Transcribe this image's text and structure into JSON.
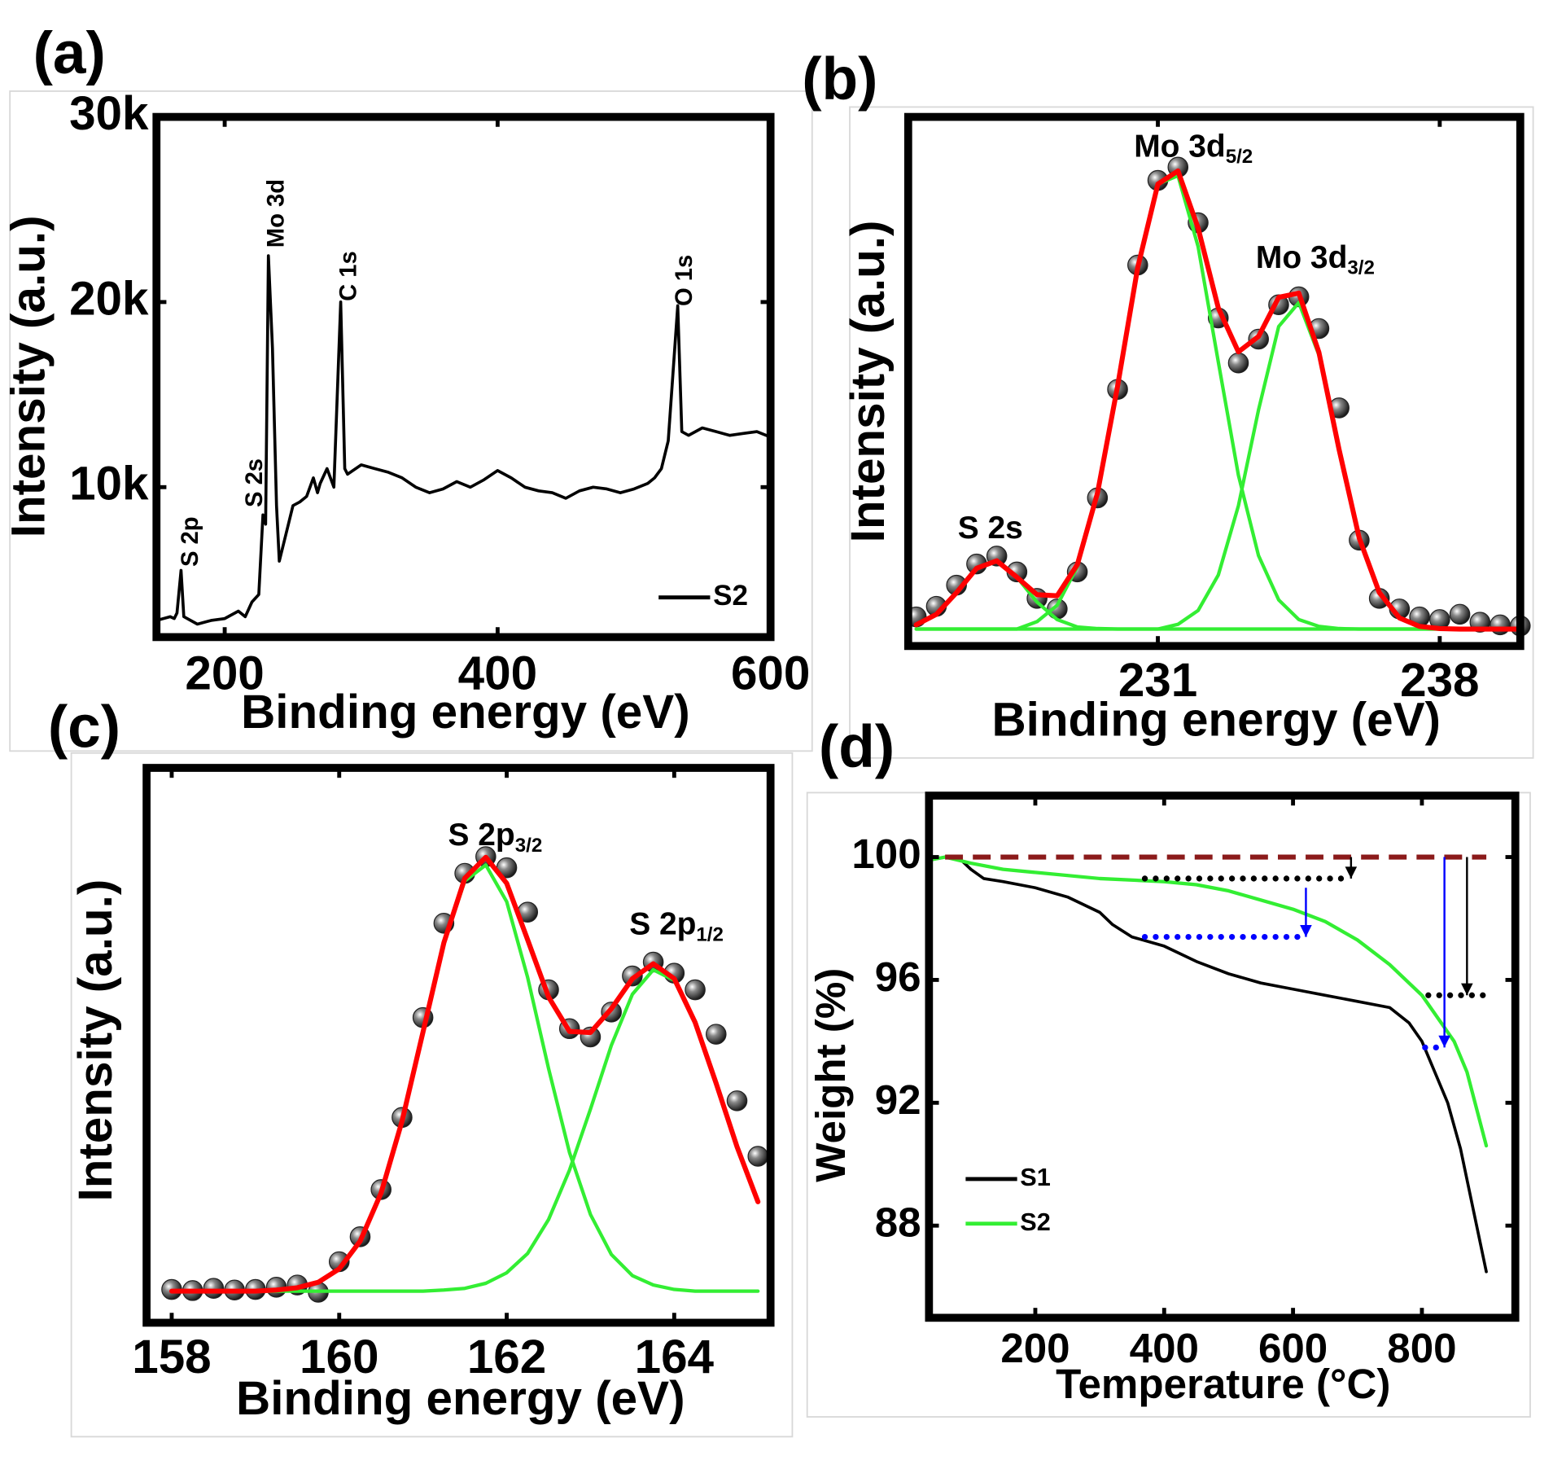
{
  "chart_data": [
    {
      "type": "line",
      "panel_label": "(a)",
      "x_label": "Binding energy (eV)",
      "y_label": "Intensity (a.u.)",
      "xlim": [
        150,
        600
      ],
      "xticks": [
        200,
        400,
        600
      ],
      "ylim": [
        1900,
        30000
      ],
      "yticks": [
        {
          "value": 10000,
          "label": "10k"
        },
        {
          "value": 20000,
          "label": "20k"
        },
        {
          "value": 30000,
          "label": "30k"
        }
      ],
      "legend": "lower right",
      "series": [
        {
          "name": "S2",
          "color": "#000000",
          "style": "line",
          "x": [
            150,
            160,
            163,
            165,
            168,
            170,
            180,
            190,
            200,
            210,
            215,
            220,
            225,
            228,
            230,
            232,
            235,
            238,
            240,
            245,
            250,
            255,
            260,
            265,
            268,
            270,
            275,
            280,
            285,
            288,
            290,
            300,
            310,
            320,
            330,
            340,
            350,
            360,
            370,
            380,
            390,
            400,
            410,
            420,
            430,
            440,
            450,
            460,
            470,
            480,
            490,
            500,
            510,
            515,
            520,
            525,
            532,
            535,
            540,
            550,
            560,
            570,
            580,
            590,
            600
          ],
          "values": [
            2800,
            3000,
            2900,
            3200,
            5500,
            3000,
            2600,
            2800,
            2900,
            3300,
            3000,
            3800,
            4200,
            8500,
            8000,
            22500,
            17500,
            9000,
            6000,
            7500,
            9000,
            9200,
            9500,
            10500,
            9700,
            10200,
            11000,
            10000,
            20000,
            11000,
            10700,
            11200,
            11000,
            10800,
            10500,
            10000,
            9700,
            9900,
            10300,
            10000,
            10400,
            10900,
            10500,
            10000,
            9800,
            9700,
            9400,
            9800,
            10000,
            9900,
            9700,
            9900,
            10200,
            10500,
            11000,
            12500,
            19800,
            13000,
            12800,
            13200,
            13000,
            12800,
            12900,
            13000,
            12700
          ]
        }
      ],
      "annotations": [
        {
          "text": "S 2p"
        },
        {
          "text": "S 2s"
        },
        {
          "text": "Mo 3d"
        },
        {
          "text": "C 1s"
        },
        {
          "text": "O 1s"
        }
      ]
    },
    {
      "type": "line",
      "panel_label": "(b)",
      "x_label": "Binding energy (eV)",
      "y_label": "Intensity (a.u.)",
      "xlim": [
        224.8,
        240
      ],
      "xticks": [
        231,
        238
      ],
      "ylim": [
        0,
        100
      ],
      "series": [
        {
          "color": "#222222",
          "style": "scatter",
          "x": [
            225,
            225.5,
            226,
            226.5,
            227,
            227.5,
            228,
            228.5,
            229,
            229.5,
            230,
            230.5,
            231,
            231.5,
            232,
            232.5,
            233,
            233.5,
            234,
            234.5,
            235,
            235.5,
            236,
            236.5,
            237,
            237.5,
            238,
            238.5,
            239,
            239.5,
            240
          ],
          "values": [
            5.5,
            7.5,
            11.5,
            15.5,
            17.0,
            14.0,
            9.0,
            7.0,
            14.0,
            28.0,
            48.5,
            72.0,
            88.0,
            90.5,
            80.0,
            62.0,
            53.5,
            58.0,
            64.5,
            66.0,
            60.0,
            45.0,
            20.0,
            9.0,
            7.0,
            5.5,
            5.0,
            6.0,
            4.5,
            4.0,
            3.8
          ]
        },
        {
          "color": "#33ee33",
          "style": "line",
          "x": [
            225,
            225.5,
            226,
            226.5,
            227,
            227.5,
            228,
            228.5,
            229,
            229.5,
            230,
            230.5,
            231,
            231.5,
            232,
            232.5,
            233,
            233.5,
            234,
            234.5,
            235,
            235.5,
            236,
            236.5,
            237,
            237.5,
            238,
            238.5,
            239,
            239.5,
            240
          ],
          "values": [
            4.0,
            6.0,
            10.1,
            14.7,
            16.1,
            13.0,
            8.3,
            5.0,
            3.6,
            3.3,
            3.2,
            3.2,
            3.2,
            3.2,
            3.2,
            3.2,
            3.2,
            3.2,
            3.2,
            3.2,
            3.2,
            3.2,
            3.2,
            3.2,
            3.2,
            3.2,
            3.2,
            3.2,
            3.2,
            3.2,
            3.2
          ]
        },
        {
          "color": "#33ee33",
          "style": "line",
          "x": [
            225,
            225.5,
            226,
            226.5,
            227,
            227.5,
            228,
            228.5,
            229,
            229.5,
            230,
            230.5,
            231,
            231.5,
            232,
            232.5,
            233,
            233.5,
            234,
            234.5,
            235,
            235.5,
            236,
            236.5,
            237,
            237.5,
            238,
            238.5,
            239,
            239.5,
            240
          ],
          "values": [
            3.2,
            3.2,
            3.2,
            3.2,
            3.2,
            3.2,
            4.6,
            7.7,
            15.0,
            28.8,
            49.1,
            71.5,
            87.3,
            88.9,
            75.5,
            53.7,
            32.3,
            17.1,
            8.7,
            5.0,
            3.7,
            3.3,
            3.2,
            3.2,
            3.2,
            3.2,
            3.2,
            3.2,
            3.2,
            3.2,
            3.2
          ]
        },
        {
          "color": "#33ee33",
          "style": "line",
          "x": [
            225,
            225.5,
            226,
            226.5,
            227,
            227.5,
            228,
            228.5,
            229,
            229.5,
            230,
            230.5,
            231,
            231.5,
            232,
            232.5,
            233,
            233.5,
            234,
            234.5,
            235,
            235.5,
            236,
            236.5,
            237,
            237.5,
            238,
            238.5,
            239,
            239.5,
            240
          ],
          "values": [
            3.2,
            3.2,
            3.2,
            3.2,
            3.2,
            3.2,
            3.2,
            3.2,
            3.2,
            3.2,
            3.2,
            3.2,
            3.2,
            4.1,
            6.7,
            13.4,
            26.5,
            44.6,
            60.4,
            64.9,
            55.0,
            37.1,
            20.4,
            10.1,
            5.3,
            3.7,
            3.3,
            3.2,
            3.2,
            3.2,
            3.2
          ]
        },
        {
          "color": "#ff0000",
          "style": "bold-line",
          "x": [
            225,
            225.5,
            226,
            226.5,
            227,
            227.5,
            228,
            228.5,
            229,
            229.5,
            230,
            230.5,
            231,
            231.5,
            232,
            232.5,
            233,
            233.5,
            234,
            234.5,
            235,
            235.5,
            236,
            236.5,
            237,
            237.5,
            238,
            238.5,
            239,
            239.5,
            240
          ],
          "values": [
            4.0,
            6.0,
            10.1,
            14.7,
            16.1,
            13.0,
            9.7,
            9.5,
            15.4,
            28.9,
            49.1,
            71.5,
            87.3,
            89.8,
            79.0,
            63.9,
            55.6,
            58.5,
            65.9,
            66.7,
            55.5,
            37.2,
            20.4,
            10.1,
            5.3,
            3.7,
            3.3,
            3.2,
            3.2,
            3.2,
            3.2
          ]
        }
      ],
      "annotations": [
        {
          "text": "S 2s"
        },
        {
          "text": "Mo 3d",
          "sub": "5/2"
        },
        {
          "text": "Mo 3d",
          "sub": "3/2"
        }
      ]
    },
    {
      "type": "line",
      "panel_label": "(c)",
      "x_label": "Binding energy (eV)",
      "y_label": "Intensity (a.u.)",
      "xlim": [
        157.7,
        165.15
      ],
      "xticks": [
        158,
        160,
        162,
        164
      ],
      "ylim": [
        0,
        100
      ],
      "series": [
        {
          "color": "#222222",
          "style": "scatter",
          "x": [
            158,
            158.25,
            158.5,
            158.75,
            159,
            159.25,
            159.5,
            159.75,
            160,
            160.25,
            160.5,
            160.75,
            161,
            161.25,
            161.5,
            161.75,
            162,
            162.25,
            162.5,
            162.75,
            163,
            163.25,
            163.5,
            163.75,
            164,
            164.25,
            164.5,
            164.75,
            165
          ],
          "values": [
            6.0,
            5.8,
            6.2,
            5.9,
            6.0,
            6.4,
            6.8,
            5.5,
            11.0,
            15.5,
            24.0,
            37.0,
            55.0,
            72.0,
            81.0,
            84.0,
            82.0,
            74.0,
            60.0,
            53.0,
            51.5,
            56.0,
            62.5,
            65.0,
            63.0,
            60.0,
            52.0,
            40.0,
            30.0
          ]
        },
        {
          "color": "#33ee33",
          "style": "line",
          "x": [
            158,
            158.25,
            158.5,
            158.75,
            159,
            159.25,
            159.5,
            159.75,
            160,
            160.25,
            160.5,
            160.75,
            161,
            161.25,
            161.5,
            161.75,
            162,
            162.25,
            162.5,
            162.75,
            163,
            163.25,
            163.5,
            163.75,
            164,
            164.25,
            164.5,
            164.75,
            165
          ],
          "values": [
            5.7,
            5.7,
            5.7,
            5.7,
            5.7,
            5.9,
            6.3,
            7.3,
            9.7,
            14.7,
            23.4,
            36.3,
            52.4,
            68.3,
            79.6,
            82.5,
            75.9,
            62.2,
            45.8,
            30.7,
            19.5,
            12.3,
            8.5,
            6.8,
            6.0,
            5.7,
            5.7,
            5.7,
            5.7
          ]
        },
        {
          "color": "#33ee33",
          "style": "line",
          "x": [
            158,
            158.25,
            158.5,
            158.75,
            159,
            159.25,
            159.5,
            159.75,
            160,
            160.25,
            160.5,
            160.75,
            161,
            161.25,
            161.5,
            161.75,
            162,
            162.25,
            162.5,
            162.75,
            163,
            163.25,
            163.5,
            163.75,
            164,
            164.25,
            164.5,
            164.75,
            165
          ],
          "values": [
            5.7,
            5.7,
            5.7,
            5.7,
            5.7,
            5.7,
            5.7,
            5.7,
            5.7,
            5.7,
            5.7,
            5.7,
            5.7,
            5.9,
            6.2,
            7.1,
            9.0,
            12.5,
            18.6,
            27.5,
            38.5,
            50.0,
            59.2,
            63.6,
            61.7,
            54.1,
            43.2,
            31.7,
            21.8
          ]
        },
        {
          "color": "#ff0000",
          "style": "bold-line",
          "x": [
            158,
            158.25,
            158.5,
            158.75,
            159,
            159.25,
            159.5,
            159.75,
            160,
            160.25,
            160.5,
            160.75,
            161,
            161.25,
            161.5,
            161.75,
            162,
            162.25,
            162.5,
            162.75,
            163,
            163.25,
            163.5,
            163.75,
            164,
            164.25,
            164.5,
            164.75,
            165
          ],
          "values": [
            5.7,
            5.7,
            5.7,
            5.7,
            5.7,
            5.9,
            6.3,
            7.3,
            9.7,
            14.7,
            23.4,
            36.3,
            52.4,
            68.5,
            80.1,
            83.9,
            79.2,
            69.0,
            58.7,
            52.5,
            52.3,
            56.6,
            62.0,
            64.7,
            62.0,
            54.1,
            43.2,
            31.7,
            21.8
          ]
        }
      ],
      "annotations": [
        {
          "text": "S 2p",
          "sub": "3/2"
        },
        {
          "text": "S 2p",
          "sub": "1/2"
        }
      ]
    },
    {
      "type": "line",
      "panel_label": "(d)",
      "x_label": "Temperature (°C)",
      "y_label": "Weight (%)",
      "xlim": [
        35,
        945
      ],
      "xticks": [
        200,
        400,
        600,
        800
      ],
      "ylim": [
        85,
        102
      ],
      "yticks": [
        88,
        92,
        96,
        100
      ],
      "legend": "lower left",
      "series": [
        {
          "name": "S1",
          "color": "#000000",
          "style": "line",
          "x": [
            35,
            60,
            80,
            100,
            120,
            150,
            200,
            250,
            300,
            320,
            350,
            400,
            450,
            500,
            550,
            600,
            650,
            700,
            750,
            780,
            800,
            820,
            840,
            860,
            880,
            900
          ],
          "values": [
            99.9,
            100.0,
            100.0,
            99.6,
            99.3,
            99.2,
            99.0,
            98.7,
            98.2,
            97.8,
            97.4,
            97.1,
            96.6,
            96.2,
            95.9,
            95.7,
            95.5,
            95.3,
            95.1,
            94.6,
            94.0,
            93.0,
            92.0,
            90.5,
            88.5,
            86.5
          ]
        },
        {
          "name": "S2",
          "color": "#33ee33",
          "style": "line",
          "x": [
            35,
            60,
            100,
            150,
            200,
            300,
            400,
            450,
            500,
            550,
            600,
            650,
            700,
            750,
            800,
            850,
            870,
            900
          ],
          "values": [
            99.9,
            100.0,
            99.8,
            99.6,
            99.5,
            99.3,
            99.2,
            99.1,
            98.9,
            98.6,
            98.3,
            97.9,
            97.3,
            96.5,
            95.5,
            94.0,
            93.0,
            90.6
          ]
        }
      ],
      "guides": [
        {
          "x": [
            60,
            900
          ],
          "y": [
            100,
            100
          ],
          "color": "#8b1a1a",
          "style": "dashed"
        },
        {
          "x": [
            370,
            690
          ],
          "y": [
            99.3,
            99.3
          ],
          "color": "#000000",
          "style": "dotted"
        },
        {
          "x": [
            370,
            620
          ],
          "y": [
            97.4,
            97.4
          ],
          "color": "#0000ff",
          "style": "dotted"
        },
        {
          "x": [
            810,
            900
          ],
          "y": [
            95.5,
            95.5
          ],
          "color": "#000000",
          "style": "dotted"
        },
        {
          "x": [
            805,
            835
          ],
          "y": [
            93.8,
            93.8
          ],
          "color": "#0000ff",
          "style": "dotted"
        },
        {
          "x": [
            690,
            690
          ],
          "y": [
            100,
            99.3
          ],
          "color": "#000000",
          "style": "arrow"
        },
        {
          "x": [
            620,
            620
          ],
          "y": [
            99.0,
            97.4
          ],
          "color": "#0000ff",
          "style": "arrow"
        },
        {
          "x": [
            835,
            835
          ],
          "y": [
            100,
            93.8
          ],
          "color": "#0000ff",
          "style": "arrow"
        },
        {
          "x": [
            870,
            870
          ],
          "y": [
            100,
            95.5
          ],
          "color": "#000000",
          "style": "arrow"
        }
      ]
    }
  ]
}
